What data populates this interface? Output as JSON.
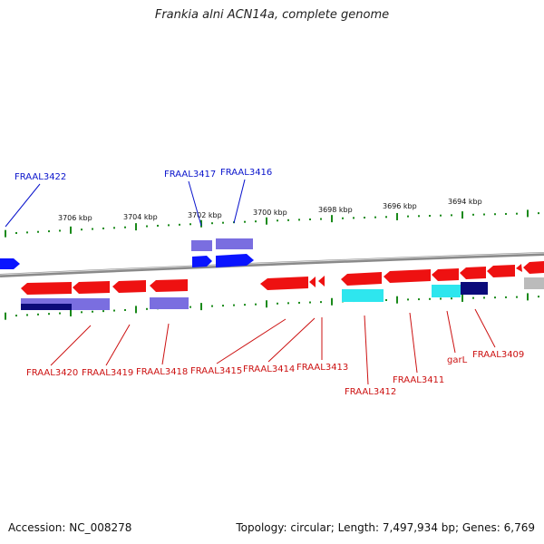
{
  "title": "Frankia alni ACN14a, complete genome",
  "footer": {
    "accession": "Accession: NC_008278",
    "topology": "Topology: circular; Length: 7,497,934 bp; Genes: 6,769"
  },
  "colors": {
    "backbone": "#8a8a8a",
    "tick": "#1a8a1a",
    "forward_gene": "#0a14ff",
    "reverse_gene": "#ee1111",
    "label_forward": "#0a14cc",
    "label_reverse": "#cc1111",
    "purple": "#7a6ee0",
    "navy": "#0b0b7a",
    "cyan": "#2ee6ee",
    "grey": "#bbbbbb"
  },
  "scale_labels": [
    "3706 kbp",
    "3704 kbp",
    "3702 kbp",
    "3700 kbp",
    "3698 kbp",
    "3696 kbp",
    "3694 kbp"
  ],
  "genes": [
    {
      "id": "FRAAL3422",
      "strand": "forward"
    },
    {
      "id": "FRAAL3417",
      "strand": "forward"
    },
    {
      "id": "FRAAL3416",
      "strand": "forward"
    },
    {
      "id": "FRAAL3420",
      "strand": "reverse"
    },
    {
      "id": "FRAAL3419",
      "strand": "reverse"
    },
    {
      "id": "FRAAL3418",
      "strand": "reverse"
    },
    {
      "id": "FRAAL3415",
      "strand": "reverse"
    },
    {
      "id": "FRAAL3414",
      "strand": "reverse"
    },
    {
      "id": "FRAAL3413",
      "strand": "reverse"
    },
    {
      "id": "FRAAL3412",
      "strand": "reverse"
    },
    {
      "id": "FRAAL3411",
      "strand": "reverse"
    },
    {
      "id": "garL",
      "strand": "reverse"
    },
    {
      "id": "FRAAL3409",
      "strand": "reverse"
    }
  ]
}
